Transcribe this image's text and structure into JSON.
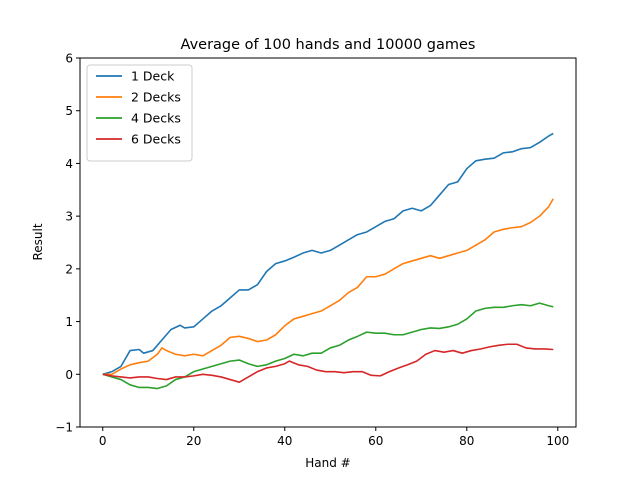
{
  "chart_data": {
    "type": "line",
    "title": "Average of 100 hands and 10000 games",
    "xlabel": "Hand #",
    "ylabel": "Result",
    "xlim": [
      -5,
      104
    ],
    "ylim": [
      -1,
      6
    ],
    "xticks": [
      0,
      20,
      40,
      60,
      80,
      100
    ],
    "yticks": [
      -1,
      0,
      1,
      2,
      3,
      4,
      5,
      6
    ],
    "legend_position": "top-left",
    "grid": false,
    "series": [
      {
        "name": "1 Deck",
        "color": "#1f77b4",
        "points": [
          [
            0,
            0
          ],
          [
            2,
            0.05
          ],
          [
            4,
            0.15
          ],
          [
            6,
            0.45
          ],
          [
            8,
            0.47
          ],
          [
            9,
            0.4
          ],
          [
            11,
            0.45
          ],
          [
            13,
            0.65
          ],
          [
            15,
            0.85
          ],
          [
            17,
            0.93
          ],
          [
            18,
            0.88
          ],
          [
            20,
            0.9
          ],
          [
            22,
            1.05
          ],
          [
            24,
            1.2
          ],
          [
            26,
            1.3
          ],
          [
            28,
            1.45
          ],
          [
            30,
            1.6
          ],
          [
            32,
            1.6
          ],
          [
            34,
            1.7
          ],
          [
            36,
            1.95
          ],
          [
            38,
            2.1
          ],
          [
            40,
            2.15
          ],
          [
            42,
            2.22
          ],
          [
            44,
            2.3
          ],
          [
            46,
            2.35
          ],
          [
            48,
            2.3
          ],
          [
            50,
            2.35
          ],
          [
            52,
            2.45
          ],
          [
            54,
            2.55
          ],
          [
            56,
            2.65
          ],
          [
            58,
            2.7
          ],
          [
            60,
            2.8
          ],
          [
            62,
            2.9
          ],
          [
            64,
            2.95
          ],
          [
            66,
            3.1
          ],
          [
            68,
            3.15
          ],
          [
            70,
            3.1
          ],
          [
            72,
            3.2
          ],
          [
            74,
            3.4
          ],
          [
            76,
            3.6
          ],
          [
            78,
            3.65
          ],
          [
            80,
            3.9
          ],
          [
            82,
            4.05
          ],
          [
            84,
            4.08
          ],
          [
            86,
            4.1
          ],
          [
            88,
            4.2
          ],
          [
            90,
            4.22
          ],
          [
            92,
            4.28
          ],
          [
            94,
            4.3
          ],
          [
            96,
            4.4
          ],
          [
            98,
            4.52
          ],
          [
            99,
            4.57
          ]
        ]
      },
      {
        "name": "2 Decks",
        "color": "#ff7f0e",
        "points": [
          [
            0,
            0
          ],
          [
            2,
            0.0
          ],
          [
            4,
            0.1
          ],
          [
            6,
            0.18
          ],
          [
            8,
            0.22
          ],
          [
            10,
            0.25
          ],
          [
            12,
            0.38
          ],
          [
            13,
            0.5
          ],
          [
            14,
            0.45
          ],
          [
            16,
            0.38
          ],
          [
            18,
            0.35
          ],
          [
            20,
            0.38
          ],
          [
            22,
            0.35
          ],
          [
            24,
            0.45
          ],
          [
            26,
            0.55
          ],
          [
            28,
            0.7
          ],
          [
            30,
            0.72
          ],
          [
            32,
            0.68
          ],
          [
            34,
            0.62
          ],
          [
            36,
            0.65
          ],
          [
            38,
            0.75
          ],
          [
            40,
            0.92
          ],
          [
            42,
            1.05
          ],
          [
            44,
            1.1
          ],
          [
            46,
            1.15
          ],
          [
            48,
            1.2
          ],
          [
            50,
            1.3
          ],
          [
            52,
            1.4
          ],
          [
            54,
            1.55
          ],
          [
            56,
            1.65
          ],
          [
            58,
            1.85
          ],
          [
            60,
            1.85
          ],
          [
            62,
            1.9
          ],
          [
            64,
            2.0
          ],
          [
            66,
            2.1
          ],
          [
            68,
            2.15
          ],
          [
            70,
            2.2
          ],
          [
            72,
            2.25
          ],
          [
            74,
            2.2
          ],
          [
            76,
            2.25
          ],
          [
            78,
            2.3
          ],
          [
            80,
            2.35
          ],
          [
            82,
            2.45
          ],
          [
            84,
            2.55
          ],
          [
            86,
            2.7
          ],
          [
            88,
            2.75
          ],
          [
            90,
            2.78
          ],
          [
            92,
            2.8
          ],
          [
            94,
            2.88
          ],
          [
            96,
            3.0
          ],
          [
            98,
            3.18
          ],
          [
            99,
            3.33
          ]
        ]
      },
      {
        "name": "4 Decks",
        "color": "#2ca02c",
        "points": [
          [
            0,
            0
          ],
          [
            2,
            -0.05
          ],
          [
            4,
            -0.1
          ],
          [
            6,
            -0.2
          ],
          [
            8,
            -0.25
          ],
          [
            10,
            -0.25
          ],
          [
            12,
            -0.27
          ],
          [
            14,
            -0.22
          ],
          [
            16,
            -0.1
          ],
          [
            18,
            -0.05
          ],
          [
            20,
            0.05
          ],
          [
            22,
            0.1
          ],
          [
            24,
            0.15
          ],
          [
            26,
            0.2
          ],
          [
            28,
            0.25
          ],
          [
            30,
            0.27
          ],
          [
            32,
            0.2
          ],
          [
            34,
            0.15
          ],
          [
            36,
            0.18
          ],
          [
            38,
            0.25
          ],
          [
            40,
            0.3
          ],
          [
            42,
            0.38
          ],
          [
            44,
            0.35
          ],
          [
            46,
            0.4
          ],
          [
            48,
            0.4
          ],
          [
            50,
            0.5
          ],
          [
            52,
            0.55
          ],
          [
            54,
            0.65
          ],
          [
            56,
            0.72
          ],
          [
            58,
            0.8
          ],
          [
            60,
            0.78
          ],
          [
            62,
            0.78
          ],
          [
            64,
            0.75
          ],
          [
            66,
            0.75
          ],
          [
            68,
            0.8
          ],
          [
            70,
            0.85
          ],
          [
            72,
            0.88
          ],
          [
            74,
            0.87
          ],
          [
            76,
            0.9
          ],
          [
            78,
            0.95
          ],
          [
            80,
            1.05
          ],
          [
            82,
            1.2
          ],
          [
            84,
            1.25
          ],
          [
            86,
            1.27
          ],
          [
            88,
            1.27
          ],
          [
            90,
            1.3
          ],
          [
            92,
            1.32
          ],
          [
            94,
            1.3
          ],
          [
            96,
            1.35
          ],
          [
            98,
            1.3
          ],
          [
            99,
            1.28
          ]
        ]
      },
      {
        "name": "6 Decks",
        "color": "#d62728",
        "points": [
          [
            0,
            0
          ],
          [
            2,
            -0.03
          ],
          [
            4,
            -0.05
          ],
          [
            6,
            -0.07
          ],
          [
            8,
            -0.05
          ],
          [
            10,
            -0.05
          ],
          [
            12,
            -0.08
          ],
          [
            14,
            -0.1
          ],
          [
            16,
            -0.05
          ],
          [
            18,
            -0.05
          ],
          [
            20,
            -0.03
          ],
          [
            22,
            0.0
          ],
          [
            24,
            -0.02
          ],
          [
            26,
            -0.05
          ],
          [
            28,
            -0.1
          ],
          [
            30,
            -0.15
          ],
          [
            32,
            -0.05
          ],
          [
            34,
            0.05
          ],
          [
            36,
            0.12
          ],
          [
            38,
            0.15
          ],
          [
            40,
            0.2
          ],
          [
            41,
            0.25
          ],
          [
            43,
            0.18
          ],
          [
            45,
            0.15
          ],
          [
            47,
            0.08
          ],
          [
            49,
            0.05
          ],
          [
            51,
            0.05
          ],
          [
            53,
            0.03
          ],
          [
            55,
            0.05
          ],
          [
            57,
            0.05
          ],
          [
            59,
            -0.02
          ],
          [
            61,
            -0.03
          ],
          [
            63,
            0.05
          ],
          [
            65,
            0.12
          ],
          [
            67,
            0.18
          ],
          [
            69,
            0.25
          ],
          [
            71,
            0.38
          ],
          [
            73,
            0.45
          ],
          [
            75,
            0.42
          ],
          [
            77,
            0.45
          ],
          [
            79,
            0.4
          ],
          [
            81,
            0.45
          ],
          [
            83,
            0.48
          ],
          [
            85,
            0.52
          ],
          [
            87,
            0.55
          ],
          [
            89,
            0.57
          ],
          [
            91,
            0.57
          ],
          [
            93,
            0.5
          ],
          [
            95,
            0.48
          ],
          [
            97,
            0.48
          ],
          [
            99,
            0.47
          ]
        ]
      }
    ]
  }
}
